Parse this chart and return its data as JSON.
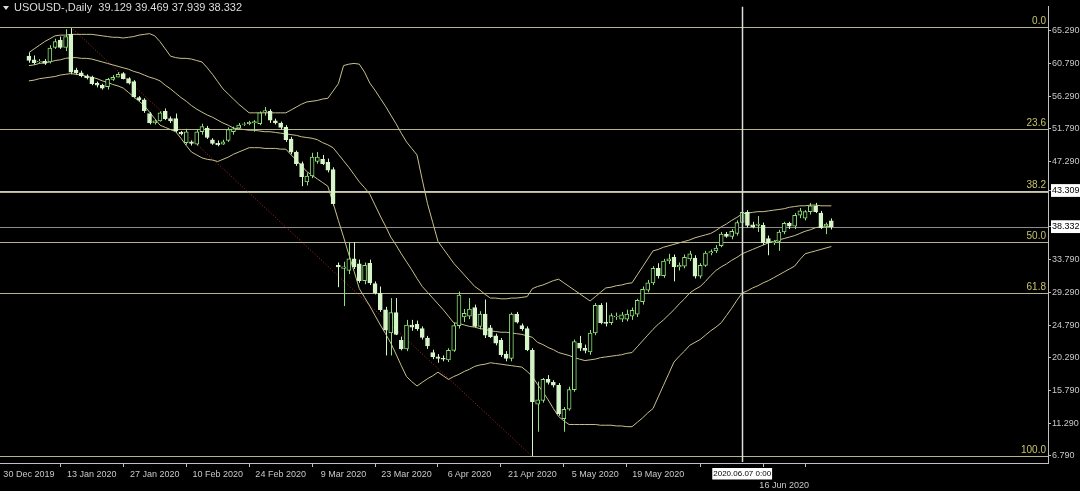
{
  "chart_data": {
    "type": "candlestick",
    "title": "USOUSD-,Daily  39.129 39.469 37.939 38.332",
    "categories": [
      "30 Dec 2019",
      null,
      null,
      null,
      null,
      null,
      null,
      null,
      null,
      null,
      null,
      null,
      "13 Jan 2020",
      null,
      null,
      null,
      null,
      null,
      null,
      null,
      null,
      null,
      null,
      null,
      "27 Jan 2020",
      null,
      null,
      null,
      null,
      null,
      null,
      null,
      null,
      null,
      null,
      null,
      "10 Feb 2020",
      null,
      null,
      null,
      null,
      null,
      null,
      null,
      null,
      null,
      null,
      null,
      "24 Feb 2020",
      null,
      null,
      null,
      null,
      null,
      null,
      null,
      null,
      null,
      null,
      null,
      "9 Mar 2020",
      null,
      null,
      null,
      null,
      null,
      null,
      null,
      null,
      null,
      null,
      null,
      "23 Mar 2020",
      null,
      null,
      null,
      null,
      null,
      null,
      null,
      null,
      null,
      null,
      null,
      "6 Apr 2020",
      null,
      null,
      null,
      null,
      null,
      null,
      null,
      null,
      null,
      null,
      null,
      "21 Apr 2020",
      null,
      null,
      null,
      null,
      null,
      null,
      null,
      null,
      null,
      null,
      null,
      "5 May 2020",
      null,
      null,
      null,
      null,
      null,
      null,
      null,
      null,
      null,
      null,
      null,
      "19 May 2020",
      null,
      null,
      null,
      null,
      null,
      null,
      null,
      null,
      null,
      null,
      null,
      null,
      null,
      null,
      null,
      "2020.06.07 0:00",
      null,
      null,
      null,
      null,
      null,
      null,
      null,
      "16 Jun 2020",
      null,
      null,
      null,
      null,
      null,
      null,
      null,
      null,
      null
    ],
    "ohlc": [
      [
        61.8,
        62.3,
        60.9,
        61.2
      ],
      [
        61.3,
        61.9,
        60.6,
        60.9
      ],
      [
        61.0,
        61.4,
        60.8,
        61.1
      ],
      [
        61.1,
        61.4,
        60.6,
        60.8
      ],
      [
        61.0,
        63.3,
        60.8,
        62.9
      ],
      [
        63.0,
        64.2,
        62.8,
        63.8
      ],
      [
        64.0,
        64.5,
        62.8,
        63.0
      ],
      [
        63.0,
        65.5,
        62.5,
        64.5
      ],
      [
        64.8,
        65.8,
        59.3,
        59.6
      ],
      [
        59.9,
        60.2,
        59.2,
        59.5
      ],
      [
        59.5,
        59.8,
        58.9,
        59.1
      ],
      [
        59.1,
        59.3,
        58.6,
        58.8
      ],
      [
        58.9,
        59.1,
        57.8,
        58.0
      ],
      [
        58.1,
        58.3,
        57.5,
        57.8
      ],
      [
        57.8,
        58.0,
        57.2,
        57.4
      ],
      [
        57.6,
        58.8,
        57.2,
        58.6
      ],
      [
        58.6,
        59.2,
        58.4,
        58.9
      ],
      [
        58.9,
        59.6,
        58.9,
        59.3
      ],
      [
        59.4,
        59.6,
        58.6,
        58.7
      ],
      [
        58.7,
        58.9,
        57.9,
        58.1
      ],
      [
        58.3,
        58.5,
        56.0,
        56.2
      ],
      [
        56.1,
        56.3,
        55.6,
        55.8
      ],
      [
        55.8,
        56.0,
        54.0,
        54.3
      ],
      [
        53.9,
        54.1,
        52.4,
        52.6
      ],
      [
        52.6,
        53.1,
        52.4,
        52.9
      ],
      [
        52.9,
        54.2,
        52.8,
        54.0
      ],
      [
        54.2,
        54.6,
        53.0,
        53.2
      ],
      [
        53.2,
        53.5,
        52.6,
        52.9
      ],
      [
        53.2,
        53.9,
        51.3,
        51.5
      ],
      [
        51.3,
        51.5,
        50.9,
        51.1
      ],
      [
        49.9,
        51.8,
        49.6,
        51.4
      ],
      [
        50.0,
        50.2,
        49.5,
        49.8
      ],
      [
        49.7,
        51.7,
        49.5,
        51.4
      ],
      [
        51.4,
        52.5,
        51.0,
        52.1
      ],
      [
        51.9,
        52.2,
        50.4,
        50.6
      ],
      [
        50.3,
        50.5,
        49.6,
        49.8
      ],
      [
        49.8,
        50.2,
        49.4,
        49.6
      ],
      [
        49.7,
        50.3,
        49.6,
        50.0
      ],
      [
        50.2,
        52.0,
        50.0,
        51.7
      ],
      [
        51.4,
        52.1,
        51.0,
        51.8
      ],
      [
        51.9,
        52.6,
        51.8,
        52.3
      ],
      [
        52.4,
        52.7,
        52.2,
        52.5
      ],
      [
        52.5,
        52.9,
        52.3,
        52.7
      ],
      [
        52.6,
        53.0,
        51.4,
        52.8
      ],
      [
        52.5,
        54.2,
        52.3,
        54.0
      ],
      [
        54.1,
        54.8,
        53.6,
        54.3
      ],
      [
        54.2,
        54.5,
        52.6,
        53.0
      ],
      [
        52.9,
        53.2,
        52.4,
        52.6
      ],
      [
        52.6,
        52.8,
        51.7,
        52.0
      ],
      [
        52.0,
        52.3,
        50.0,
        50.3
      ],
      [
        50.4,
        50.7,
        48.3,
        48.6
      ],
      [
        48.6,
        48.8,
        46.7,
        47.0
      ],
      [
        47.0,
        47.3,
        43.9,
        45.2
      ],
      [
        44.5,
        45.7,
        44.0,
        45.3
      ],
      [
        45.3,
        48.5,
        45.0,
        47.9
      ],
      [
        47.3,
        48.6,
        47.0,
        47.9
      ],
      [
        47.6,
        48.2,
        46.8,
        47.0
      ],
      [
        47.2,
        47.7,
        45.8,
        46.1
      ],
      [
        46.2,
        46.5,
        41.2,
        41.5
      ],
      [
        33.0,
        33.4,
        30.0,
        32.8
      ],
      [
        32.6,
        33.5,
        27.4,
        32.8
      ],
      [
        32.3,
        36.2,
        31.8,
        33.9
      ],
      [
        33.9,
        36.2,
        32.5,
        32.8
      ],
      [
        33.2,
        33.8,
        30.6,
        30.9
      ],
      [
        30.9,
        33.4,
        30.4,
        33.0
      ],
      [
        33.3,
        33.8,
        30.3,
        30.6
      ],
      [
        30.5,
        30.8,
        29.0,
        29.2
      ],
      [
        29.2,
        30.1,
        26.6,
        26.9
      ],
      [
        26.9,
        27.3,
        20.6,
        24.1
      ],
      [
        23.7,
        28.5,
        20.6,
        26.5
      ],
      [
        26.5,
        28.5,
        23.4,
        23.5
      ],
      [
        22.7,
        23.2,
        21.3,
        21.5
      ],
      [
        21.5,
        25.5,
        21.2,
        24.8
      ],
      [
        24.8,
        25.5,
        24.0,
        24.5
      ],
      [
        24.9,
        25.4,
        24.0,
        24.3
      ],
      [
        24.3,
        24.6,
        22.8,
        23.1
      ],
      [
        23.0,
        23.3,
        21.5,
        21.9
      ],
      [
        21.0,
        21.4,
        20.1,
        20.4
      ],
      [
        20.4,
        20.8,
        19.6,
        20.2
      ],
      [
        20.2,
        20.6,
        19.8,
        20.1
      ],
      [
        20.0,
        21.6,
        19.7,
        21.3
      ],
      [
        21.3,
        25.1,
        21.1,
        24.7
      ],
      [
        24.7,
        29.4,
        24.3,
        28.9
      ],
      [
        25.9,
        27.0,
        25.2,
        26.4
      ],
      [
        26.0,
        28.5,
        25.6,
        27.0
      ],
      [
        27.2,
        27.6,
        24.4,
        24.6
      ],
      [
        24.6,
        26.7,
        24.2,
        26.3
      ],
      [
        26.3,
        28.3,
        23.0,
        23.4
      ],
      [
        24.4,
        24.8,
        23.0,
        23.2
      ],
      [
        23.3,
        23.6,
        22.0,
        22.3
      ],
      [
        22.7,
        23.0,
        20.4,
        20.7
      ],
      [
        20.8,
        21.2,
        19.8,
        20.2
      ],
      [
        20.2,
        26.5,
        19.8,
        26.3
      ],
      [
        26.3,
        26.6,
        25.0,
        25.2
      ],
      [
        24.7,
        25.0,
        24.0,
        24.3
      ],
      [
        24.3,
        24.6,
        21.2,
        21.4
      ],
      [
        21.3,
        21.6,
        6.7,
        14.2
      ],
      [
        13.9,
        17.0,
        10.1,
        14.5
      ],
      [
        14.4,
        17.5,
        14.1,
        17.3
      ],
      [
        17.3,
        17.9,
        16.6,
        16.9
      ],
      [
        16.9,
        17.2,
        16.2,
        16.5
      ],
      [
        16.5,
        16.8,
        12.3,
        12.6
      ],
      [
        11.9,
        13.5,
        10.1,
        13.2
      ],
      [
        13.2,
        16.3,
        13.0,
        15.9
      ],
      [
        15.9,
        22.8,
        15.6,
        22.5
      ],
      [
        22.3,
        23.3,
        21.2,
        21.6
      ],
      [
        21.6,
        22.1,
        20.9,
        21.3
      ],
      [
        21.1,
        24.1,
        20.7,
        23.7
      ],
      [
        23.7,
        27.8,
        23.4,
        27.5
      ],
      [
        27.5,
        27.8,
        24.9,
        25.1
      ],
      [
        25.2,
        27.9,
        24.6,
        25.0
      ],
      [
        25.1,
        26.4,
        24.8,
        26.1
      ],
      [
        25.9,
        26.5,
        25.5,
        26.0
      ],
      [
        25.6,
        26.6,
        25.2,
        26.2
      ],
      [
        25.6,
        26.9,
        25.3,
        26.3
      ],
      [
        26.0,
        27.2,
        25.5,
        26.8
      ],
      [
        26.3,
        28.4,
        25.9,
        28.2
      ],
      [
        28.0,
        30.1,
        27.6,
        29.7
      ],
      [
        29.6,
        31.0,
        29.3,
        30.6
      ],
      [
        30.6,
        32.9,
        30.3,
        32.6
      ],
      [
        32.6,
        33.3,
        31.2,
        31.6
      ],
      [
        31.6,
        33.9,
        31.3,
        33.6
      ],
      [
        33.6,
        34.6,
        33.2,
        33.9
      ],
      [
        34.1,
        34.5,
        30.8,
        32.8
      ],
      [
        32.8,
        33.4,
        32.3,
        33.0
      ],
      [
        32.9,
        34.5,
        32.6,
        34.1
      ],
      [
        33.9,
        35.0,
        33.6,
        34.6
      ],
      [
        34.0,
        34.4,
        31.2,
        31.5
      ],
      [
        31.5,
        33.3,
        31.2,
        33.0
      ],
      [
        33.0,
        35.0,
        32.8,
        34.7
      ],
      [
        34.7,
        35.2,
        34.4,
        34.9
      ],
      [
        35.0,
        35.8,
        34.7,
        35.4
      ],
      [
        35.7,
        37.6,
        35.5,
        37.3
      ],
      [
        37.3,
        37.6,
        36.8,
        37.0
      ],
      [
        37.0,
        38.0,
        36.6,
        37.7
      ],
      [
        37.4,
        39.2,
        37.1,
        38.9
      ],
      [
        38.9,
        40.6,
        38.6,
        40.3
      ],
      [
        40.3,
        40.6,
        38.2,
        38.5
      ],
      [
        38.6,
        39.0,
        38.1,
        38.3
      ],
      [
        38.5,
        39.8,
        37.6,
        38.7
      ],
      [
        38.5,
        38.9,
        35.8,
        36.1
      ],
      [
        36.7,
        37.1,
        34.4,
        36.1
      ],
      [
        36.1,
        36.5,
        35.8,
        36.3
      ],
      [
        36.3,
        37.9,
        35.0,
        37.6
      ],
      [
        37.6,
        39.0,
        37.3,
        38.8
      ],
      [
        38.8,
        39.0,
        38.0,
        38.4
      ],
      [
        38.4,
        40.2,
        38.0,
        39.9
      ],
      [
        39.9,
        40.9,
        39.5,
        40.5
      ],
      [
        39.5,
        40.6,
        39.2,
        40.4
      ],
      [
        40.4,
        41.6,
        40.0,
        41.2
      ],
      [
        41.2,
        41.6,
        40.2,
        40.4
      ],
      [
        40.2,
        40.5,
        38.0,
        38.2
      ],
      [
        38.4,
        38.9,
        37.3,
        38.7
      ],
      [
        39.129,
        39.469,
        37.939,
        38.332
      ]
    ],
    "series": [
      {
        "type": "line",
        "color": "#c8c08c",
        "values": [
          62.3,
          62.8,
          63.3,
          63.8,
          64.2,
          64.6,
          64.7,
          64.7,
          64.8,
          64.8,
          64.8,
          64.8,
          64.8,
          64.7,
          64.6,
          64.5,
          64.4,
          64.4,
          64.3,
          64.4,
          64.5,
          64.7,
          64.8,
          64.9,
          64.6,
          63.8,
          62.8,
          61.8,
          61.6,
          61.5,
          61.5,
          61.4,
          61.2,
          61.0,
          60.2,
          59.3,
          58.3,
          57.3,
          56.6,
          55.9,
          55.2,
          54.6,
          54.0,
          54.0,
          54.0,
          54.0,
          54.0,
          54.0,
          54.0,
          54.0,
          54.4,
          54.8,
          55.2,
          55.5,
          55.6,
          55.7,
          55.9,
          56.0,
          57.0,
          58.0,
          60.5,
          60.7,
          60.8,
          60.7,
          59.6,
          58.1,
          57.1,
          56.0,
          54.9,
          53.7,
          52.5,
          51.2,
          50.0,
          49.1,
          48.2,
          44.8,
          41.5,
          38.9,
          36.3,
          35.3,
          34.3,
          33.3,
          32.5,
          31.7,
          30.9,
          30.1,
          29.6,
          29.0,
          28.5,
          28.5,
          28.4,
          28.4,
          28.5,
          28.5,
          28.6,
          28.7,
          29.8,
          30.1,
          30.3,
          30.6,
          30.9,
          31.1,
          30.6,
          30.1,
          29.6,
          29.1,
          28.6,
          28.1,
          28.7,
          29.3,
          29.9,
          30.0,
          30.2,
          30.3,
          30.5,
          30.6,
          31.7,
          32.8,
          33.9,
          35.0,
          35.2,
          35.5,
          35.7,
          35.9,
          36.1,
          36.3,
          36.5,
          36.8,
          37.0,
          37.2,
          37.4,
          37.8,
          38.3,
          38.7,
          39.2,
          39.6,
          40.1,
          40.2,
          40.3,
          40.4,
          40.4,
          40.5,
          40.6,
          40.7,
          40.8,
          41.0,
          41.1,
          41.2,
          41.2,
          41.3,
          41.3,
          41.2,
          41.2,
          41.2
        ]
      },
      {
        "type": "line",
        "color": "#c8c08c",
        "values": [
          60.5,
          60.6,
          60.8,
          60.9,
          61.0,
          61.2,
          61.3,
          61.5,
          61.6,
          61.6,
          61.5,
          61.5,
          61.4,
          61.2,
          61.0,
          60.8,
          60.6,
          60.4,
          60.2,
          60.0,
          59.7,
          59.5,
          59.2,
          58.9,
          58.7,
          58.4,
          57.8,
          57.3,
          56.7,
          56.1,
          55.6,
          55.0,
          54.5,
          54.1,
          53.7,
          53.4,
          53.0,
          52.6,
          52.3,
          51.9,
          51.8,
          51.7,
          51.6,
          51.6,
          51.5,
          51.4,
          51.4,
          51.3,
          51.2,
          51.1,
          51.0,
          50.9,
          50.7,
          50.6,
          50.5,
          50.3,
          49.9,
          49.6,
          49.2,
          48.3,
          47.4,
          46.5,
          45.5,
          44.5,
          43.7,
          42.8,
          41.3,
          39.8,
          38.4,
          36.9,
          35.8,
          34.6,
          33.5,
          32.4,
          31.2,
          30.1,
          29.3,
          28.5,
          27.7,
          26.9,
          26.0,
          25.1,
          25.0,
          24.8,
          24.6,
          24.5,
          24.3,
          24.2,
          24.0,
          23.9,
          23.8,
          23.8,
          23.7,
          23.6,
          23.5,
          23.3,
          23.1,
          22.4,
          22.1,
          21.7,
          21.4,
          21.0,
          20.8,
          20.6,
          20.3,
          20.1,
          19.9,
          20.0,
          20.1,
          20.3,
          20.4,
          20.5,
          20.6,
          20.7,
          20.9,
          21.0,
          21.8,
          22.6,
          23.4,
          24.2,
          24.9,
          25.5,
          26.2,
          26.9,
          27.7,
          28.4,
          29.2,
          29.7,
          30.1,
          30.8,
          31.6,
          32.3,
          32.8,
          33.2,
          33.7,
          34.1,
          34.6,
          34.9,
          35.2,
          35.5,
          35.8,
          36.1,
          36.3,
          36.5,
          36.7,
          36.9,
          37.1,
          37.4,
          37.7,
          37.9,
          38.2,
          38.3,
          38.3,
          38.4
        ]
      },
      {
        "type": "line",
        "color": "#c8c08c",
        "values": [
          58.4,
          58.5,
          58.7,
          58.8,
          58.9,
          59.0,
          59.2,
          59.3,
          59.4,
          59.3,
          59.2,
          59.0,
          58.9,
          58.7,
          58.4,
          58.2,
          57.9,
          57.7,
          57.4,
          56.8,
          56.2,
          55.6,
          55.0,
          54.1,
          53.2,
          52.3,
          52.0,
          51.7,
          51.4,
          50.5,
          49.5,
          48.6,
          48.2,
          47.8,
          47.6,
          47.5,
          47.3,
          47.6,
          47.9,
          48.3,
          48.6,
          48.9,
          49.2,
          49.2,
          49.2,
          49.1,
          49.1,
          49.1,
          49.0,
          49.0,
          48.2,
          47.5,
          46.7,
          45.9,
          45.4,
          44.9,
          44.4,
          43.9,
          41.6,
          39.2,
          36.9,
          34.5,
          32.2,
          29.8,
          28.6,
          27.4,
          26.1,
          24.8,
          23.6,
          22.3,
          20.8,
          19.2,
          17.7,
          17.0,
          16.4,
          16.9,
          17.4,
          17.8,
          18.3,
          17.8,
          17.3,
          17.7,
          18.0,
          18.4,
          18.7,
          19.1,
          19.3,
          19.4,
          19.6,
          19.5,
          19.4,
          19.3,
          19.2,
          19.1,
          19.0,
          18.4,
          17.7,
          16.6,
          15.6,
          14.5,
          13.3,
          12.2,
          11.6,
          11.1,
          11.1,
          11.1,
          11.1,
          11.1,
          11.1,
          11.0,
          11.0,
          11.0,
          10.9,
          10.9,
          10.8,
          10.8,
          11.4,
          12.0,
          12.7,
          13.3,
          14.9,
          16.5,
          18.1,
          19.7,
          20.5,
          21.2,
          22.0,
          22.4,
          22.8,
          23.4,
          24.0,
          24.5,
          25.1,
          26.1,
          27.1,
          28.2,
          29.2,
          29.5,
          29.9,
          30.2,
          30.6,
          30.9,
          31.3,
          31.7,
          32.1,
          32.5,
          32.9,
          33.8,
          34.6,
          34.8,
          35.0,
          35.2,
          35.4,
          35.6
        ]
      },
      {
        "type": "line",
        "color": "#a8301c",
        "line_style": "dotted",
        "values": [
          null,
          null,
          null,
          null,
          null,
          null,
          null,
          null,
          65.8,
          null,
          null,
          null,
          null,
          null,
          null,
          null,
          null,
          null,
          null,
          null,
          null,
          null,
          null,
          null,
          null,
          null,
          null,
          null,
          null,
          null,
          null,
          null,
          null,
          null,
          null,
          null,
          null,
          null,
          null,
          null,
          null,
          null,
          null,
          null,
          null,
          null,
          null,
          null,
          null,
          null,
          null,
          null,
          null,
          null,
          null,
          null,
          null,
          null,
          null,
          null,
          null,
          null,
          null,
          null,
          null,
          null,
          null,
          null,
          null,
          null,
          null,
          null,
          null,
          null,
          null,
          null,
          null,
          null,
          null,
          null,
          null,
          null,
          null,
          null,
          null,
          null,
          null,
          null,
          null,
          null,
          null,
          null,
          null,
          null,
          null,
          null,
          6.7,
          null,
          null,
          null,
          null,
          null,
          null,
          null,
          null,
          null,
          null,
          null,
          null,
          null,
          null,
          null,
          null,
          null,
          null,
          null,
          null,
          null,
          null,
          null,
          null,
          null,
          null,
          null,
          null,
          null,
          null,
          null,
          null,
          null,
          null,
          null,
          null,
          null,
          null,
          null,
          null,
          null,
          null,
          null,
          null,
          null,
          null,
          null,
          null,
          null,
          null,
          null,
          null,
          null,
          null,
          null,
          null,
          null
        ]
      }
    ],
    "ylim": [
      5.8,
      68.65
    ],
    "yticks": [
      {
        "value": 6.79,
        "label": "6.790"
      },
      {
        "value": 11.29,
        "label": "11.290"
      },
      {
        "value": 15.79,
        "label": "15.790"
      },
      {
        "value": 20.29,
        "label": "20.290"
      },
      {
        "value": 24.79,
        "label": "24.790"
      },
      {
        "value": 29.29,
        "label": "29.290"
      },
      {
        "value": 33.79,
        "label": "33.790"
      },
      {
        "value": 38.332,
        "label": "38.332"
      },
      {
        "value": 43.309,
        "label": "43.309"
      },
      {
        "value": 47.29,
        "label": "47.290"
      },
      {
        "value": 51.79,
        "label": "51.790"
      },
      {
        "value": 56.29,
        "label": "56.290"
      },
      {
        "value": 60.79,
        "label": "60.790"
      },
      {
        "value": 65.29,
        "label": "65.290"
      }
    ],
    "annotations": [
      {
        "text": "0.0",
        "y": 65.8
      },
      {
        "text": "23.6",
        "y": 51.8
      },
      {
        "text": "38.2",
        "y": 43.17
      },
      {
        "text": "50.0",
        "y": 36.2
      },
      {
        "text": "61.8",
        "y": 29.2
      },
      {
        "text": "100.0",
        "y": 6.7
      }
    ],
    "ref_lines": [
      {
        "axis": "y",
        "value": 65.8,
        "color": "#b8b48a"
      },
      {
        "axis": "y",
        "value": 51.8,
        "color": "#b8b48a"
      },
      {
        "axis": "y",
        "value": 43.17,
        "color": "#b8b48a"
      },
      {
        "axis": "y",
        "value": 36.2,
        "color": "#b8b48a"
      },
      {
        "axis": "y",
        "value": 29.2,
        "color": "#b8b48a"
      },
      {
        "axis": "y",
        "value": 6.7,
        "color": "#b8b48a"
      },
      {
        "axis": "y",
        "value": 43.309,
        "color": "#c8c8c8"
      },
      {
        "axis": "y",
        "value": 38.332,
        "color": "#8c8c8c"
      },
      {
        "axis": "x",
        "value": "2020.06.07 0:00",
        "color": "#dcdcdc"
      }
    ]
  }
}
